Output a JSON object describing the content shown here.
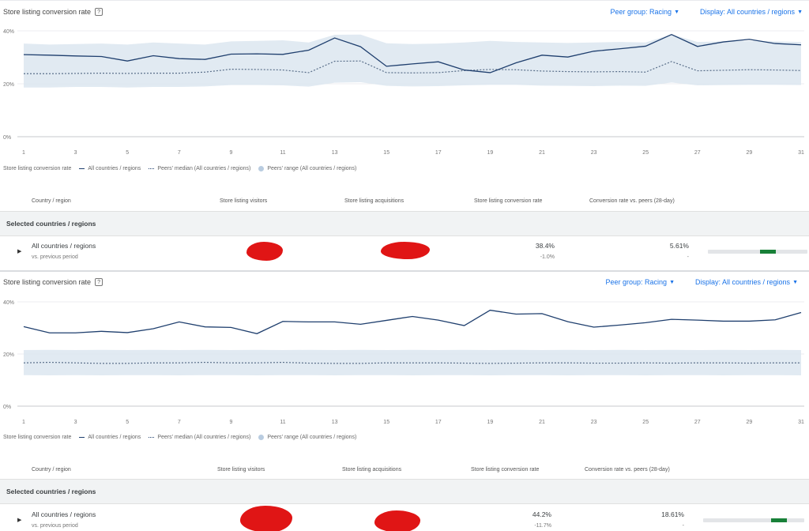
{
  "panels": [
    {
      "title": "Store listing conversion rate",
      "help_icon": "help-icon",
      "controls": {
        "peer_group": "Peer group: Racing",
        "display": "Display: All countries / regions"
      },
      "legend": {
        "metric": "Store listing conversion rate",
        "series_a": "All countries / regions",
        "series_b": "Peers' median (All countries / regions)",
        "series_c": "Peers' range (All countries / regions)"
      },
      "table": {
        "headers": [
          "Country / region",
          "Store listing visitors",
          "Store listing acquisitions",
          "Store listing conversion rate",
          "Conversion rate vs. peers (28-day)"
        ],
        "section_label": "Selected countries / regions",
        "row": {
          "name": "All countries / regions",
          "sub": "vs. previous period",
          "conversion": "38.4%",
          "conversion_change": "-1.0%",
          "vs_peers": "5.61%",
          "vs_peers_sub": "-",
          "peer_bar_fraction": 0.6
        }
      }
    },
    {
      "title": "Store listing conversion rate",
      "help_icon": "help-icon",
      "controls": {
        "peer_group": "Peer group: Racing",
        "display": "Display: All countries / regions"
      },
      "legend": {
        "metric": "Store listing conversion rate",
        "series_a": "All countries / regions",
        "series_b": "Peers' median (All countries / regions)",
        "series_c": "Peers' range (All countries / regions)"
      },
      "table": {
        "headers": [
          "Country / region",
          "Store listing visitors",
          "Store listing acquisitions",
          "Store listing conversion rate",
          "Conversion rate vs. peers (28-day)"
        ],
        "section_label": "Selected countries / regions",
        "row": {
          "name": "All countries / regions",
          "sub": "vs. previous period",
          "conversion": "44.2%",
          "conversion_change": "-11.7%",
          "vs_peers": "18.61%",
          "vs_peers_sub": "-",
          "peer_bar_fraction": 0.75
        }
      }
    }
  ],
  "chart_data": [
    {
      "type": "line",
      "x": [
        1,
        2,
        3,
        4,
        5,
        6,
        7,
        8,
        9,
        10,
        11,
        12,
        13,
        14,
        15,
        16,
        17,
        18,
        19,
        20,
        21,
        22,
        23,
        24,
        25,
        26,
        27,
        28,
        29,
        30,
        31
      ],
      "x_tick_labels": [
        "1",
        "3",
        "5",
        "7",
        "9",
        "11",
        "13",
        "15",
        "17",
        "19",
        "21",
        "23",
        "25",
        "27",
        "29",
        "31"
      ],
      "y_tick_labels": [
        "40%",
        "20%",
        "0%"
      ],
      "ylim": [
        0,
        40
      ],
      "series": [
        {
          "name": "All countries / regions",
          "values": [
            31,
            30.8,
            30.5,
            30.3,
            28.6,
            30.6,
            29.5,
            29.2,
            31.2,
            31.3,
            31.1,
            32.7,
            37.3,
            34,
            26.6,
            27.5,
            28.3,
            25.2,
            24.2,
            27.9,
            30.8,
            30.1,
            32.3,
            33.2,
            34.2,
            38.6,
            34.1,
            35.8,
            36.8,
            35.2,
            34.7
          ]
        },
        {
          "name": "Peers' median (All countries / regions)",
          "values": [
            23.8,
            23.8,
            23.9,
            24,
            23.9,
            24,
            24,
            24.4,
            25.5,
            25.4,
            25.2,
            24.2,
            28.5,
            28.6,
            24.2,
            24.1,
            24.2,
            25,
            25.4,
            25.3,
            24.8,
            24.6,
            24.5,
            24.6,
            24.4,
            28.4,
            24.9,
            25.1,
            25.3,
            25.2,
            25
          ]
        },
        {
          "name": "Peers' range (All countries / regions)",
          "low": [
            18.6,
            18.6,
            18.8,
            18.8,
            18.6,
            18.8,
            18.8,
            19,
            19.5,
            19.5,
            19.4,
            18.9,
            20.4,
            20.6,
            19.2,
            19,
            19.1,
            19.4,
            19.6,
            19.6,
            19.3,
            19.2,
            19.1,
            19.3,
            19.2,
            20.5,
            19.4,
            19.5,
            19.6,
            19.6,
            19.5
          ],
          "high": [
            35.2,
            34.8,
            35,
            35.2,
            34.8,
            35.6,
            35.2,
            34.8,
            36,
            36.2,
            36.4,
            35.6,
            38.5,
            38.6,
            35.3,
            35,
            35.2,
            35.6,
            36.2,
            35.8,
            35.6,
            35.4,
            35.6,
            35.8,
            35.6,
            38.7,
            35.8,
            36,
            36.2,
            36,
            35.8
          ]
        }
      ]
    },
    {
      "type": "line",
      "x": [
        1,
        2,
        3,
        4,
        5,
        6,
        7,
        8,
        9,
        10,
        11,
        12,
        13,
        14,
        15,
        16,
        17,
        18,
        19,
        20,
        21,
        22,
        23,
        24,
        25,
        26,
        27,
        28,
        29,
        30,
        31
      ],
      "x_tick_labels": [
        "1",
        "3",
        "5",
        "7",
        "9",
        "11",
        "13",
        "15",
        "17",
        "19",
        "21",
        "23",
        "25",
        "27",
        "29",
        "31"
      ],
      "y_tick_labels": [
        "40%",
        "20%",
        "0%"
      ],
      "ylim": [
        0,
        40
      ],
      "series": [
        {
          "name": "All countries / regions",
          "values": [
            30.5,
            28.1,
            28.1,
            28.7,
            28.2,
            29.7,
            32.3,
            30.4,
            30.2,
            27.8,
            32.5,
            32.3,
            32.3,
            31.4,
            32.9,
            34.4,
            33,
            30.9,
            36.8,
            35.3,
            35.5,
            32.4,
            30.3,
            31.1,
            32,
            33.3,
            33,
            32.6,
            32.6,
            33.1,
            35.9
          ]
        },
        {
          "name": "Peers' median (All countries / regions)",
          "values": [
            16.6,
            16.8,
            16.6,
            16.4,
            16.4,
            16.6,
            16.6,
            16.8,
            16.6,
            16.6,
            16.8,
            16.5,
            16.4,
            16.4,
            16.6,
            16.6,
            16.6,
            16.5,
            16.4,
            16.5,
            16.6,
            16.6,
            16.5,
            16.5,
            16.6,
            16.5,
            16.6,
            16.6,
            16.5,
            16.6,
            16.6
          ]
        },
        {
          "name": "Peers' range (All countries / regions)",
          "low": [
            11.9,
            11.8,
            11.9,
            11.8,
            11.9,
            11.9,
            11.8,
            11.9,
            11.9,
            11.8,
            11.9,
            11.9,
            11.8,
            11.9,
            11.9,
            11.8,
            11.9,
            11.9,
            11.8,
            11.9,
            11.9,
            11.8,
            11.9,
            11.9,
            11.8,
            11.9,
            11.9,
            11.8,
            11.9,
            11.9,
            11.8
          ],
          "high": [
            21.5,
            21.6,
            21.5,
            21.6,
            21.5,
            21.6,
            21.5,
            21.6,
            21.5,
            21.6,
            21.5,
            21.6,
            21.5,
            21.6,
            21.5,
            21.6,
            21.5,
            21.6,
            21.5,
            21.6,
            21.5,
            21.6,
            21.5,
            21.6,
            21.5,
            21.6,
            21.5,
            21.6,
            21.5,
            21.6,
            21.5
          ]
        }
      ]
    }
  ],
  "colors": {
    "accent": "#1a73e8",
    "line": "#1f3f6e",
    "band": "#dce6f0",
    "section_bg": "#f1f3f4",
    "peer_bar": "#188038",
    "redaction": "#e01515"
  }
}
